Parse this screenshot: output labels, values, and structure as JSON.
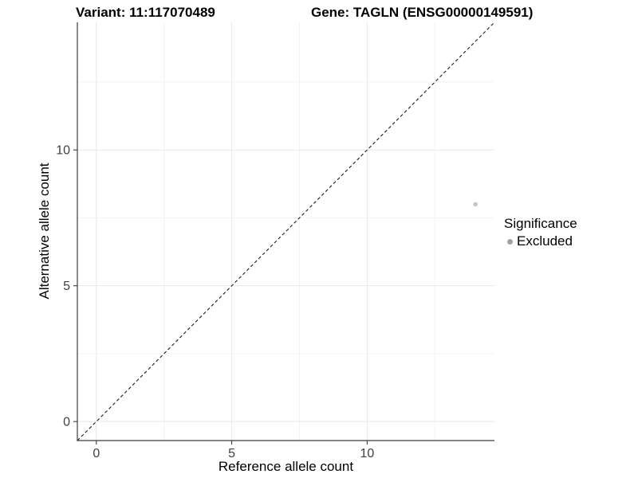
{
  "figure": {
    "titles": {
      "left": "Variant: 11:117070489",
      "right": "Gene: TAGLN (ENSG00000149591)"
    }
  },
  "legend": {
    "title": "Significance",
    "items": [
      {
        "label": "Excluded",
        "marker_color": "#a3a3a3"
      }
    ]
  },
  "chart_data": {
    "type": "scatter",
    "title_left": "Variant: 11:117070489",
    "title_right": "Gene: TAGLN (ENSG00000149591)",
    "xlabel": "Reference allele count",
    "ylabel": "Alternative allele count",
    "xlim": [
      -0.7,
      14.7
    ],
    "ylim": [
      -0.7,
      14.7
    ],
    "x_major_ticks": [
      0,
      5,
      10
    ],
    "y_major_ticks": [
      0,
      5,
      10
    ],
    "x_minor_gridlines": [
      2.5,
      7.5,
      12.5
    ],
    "y_minor_gridlines": [
      2.5,
      7.5,
      12.5
    ],
    "grid": true,
    "legend_position": "right",
    "points": [
      {
        "x": 14,
        "y": 8,
        "series": "Excluded",
        "color": "#c7c7c7",
        "radius": 2.8
      }
    ],
    "identity_line": {
      "slope": 1,
      "intercept": 0,
      "style": "dashed",
      "color": "#1a1a1a"
    },
    "colors": {
      "axis_line": "#3c3c3c",
      "tick_mark": "#3c3c3c",
      "tick_label": "#404040",
      "grid_major": "#e8e8e8",
      "grid_minor": "#f3f3f3",
      "background": "#ffffff"
    }
  }
}
